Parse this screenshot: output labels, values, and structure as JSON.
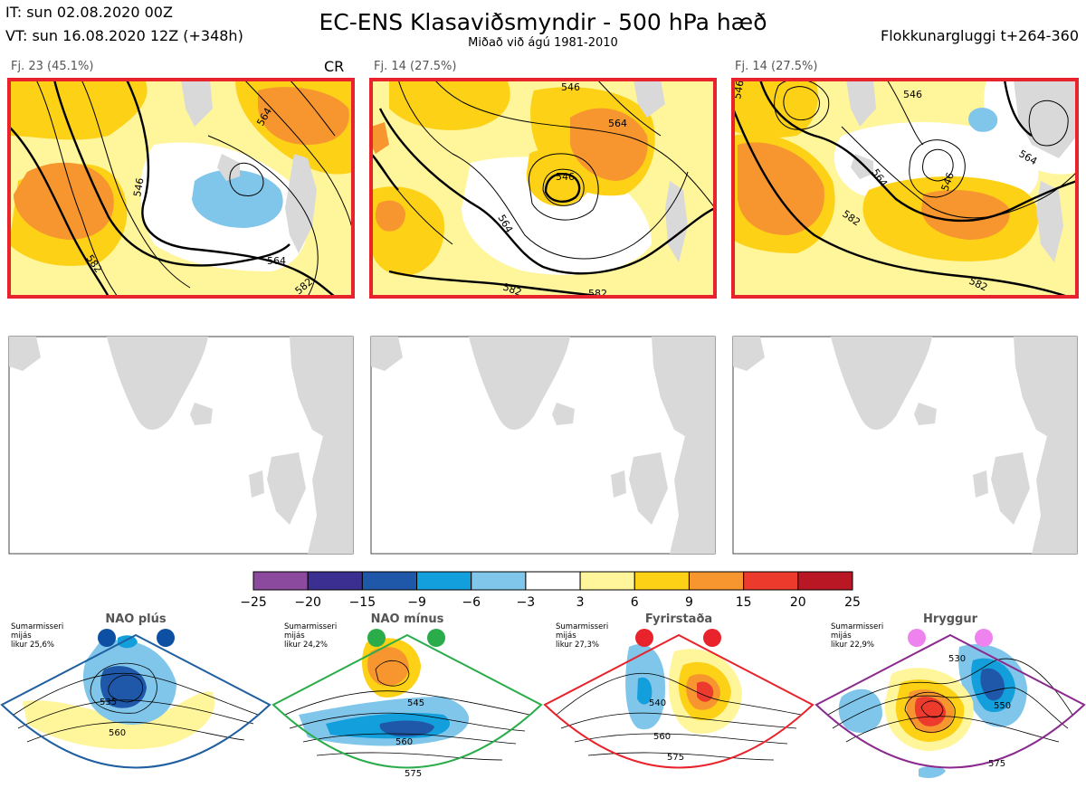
{
  "header": {
    "it": "IT: sun 02.08.2020 00Z",
    "vt": "VT: sun 16.08.2020 12Z  (+348h)",
    "title": "EC-ENS Klasaviðsmyndir - 500 hPa hæð",
    "subtitle": "Miðað við ágú 1981-2010",
    "window": "Flokkunargluggi t+264-360"
  },
  "panels": [
    {
      "label": "Fj. 23 (45.1%)",
      "cr": "CR",
      "contours": [
        "546",
        "564",
        "564",
        "582",
        "582"
      ]
    },
    {
      "label": "Fj. 14 (27.5%)",
      "contours": [
        "546",
        "546",
        "564",
        "564",
        "582",
        "582"
      ]
    },
    {
      "label": "Fj. 14 (27.5%)",
      "contours": [
        "546",
        "546",
        "546",
        "564",
        "564",
        "582",
        "582"
      ]
    }
  ],
  "colorbar": {
    "ticks": [
      "−25",
      "−20",
      "−15",
      "−9",
      "−6",
      "−3",
      "3",
      "6",
      "9",
      "15",
      "20",
      "25"
    ],
    "colors": [
      "#8c4a9e",
      "#3b2f91",
      "#1f58a8",
      "#139fdb",
      "#80c6eb",
      "#ffffff",
      "#fff59a",
      "#fcd116",
      "#f7962f",
      "#ec3a2d",
      "#b81723"
    ]
  },
  "regimes": [
    {
      "name": "NAO plús",
      "line1": "Sumarmisseri",
      "line2": "mijás",
      "line3": "likur 25,6%",
      "dot_color": "#0d4fa3",
      "border": "#1f5fa0",
      "contours": [
        "535",
        "560"
      ]
    },
    {
      "name": "NAO mínus",
      "line1": "Sumarmisseri",
      "line2": "mijás",
      "line3": "likur 24,2%",
      "dot_color": "#2aac4a",
      "border": "#2aac4a",
      "contours": [
        "545",
        "560",
        "575"
      ]
    },
    {
      "name": "Fyrirstaða",
      "line1": "Sumarmisseri",
      "line2": "mijás",
      "line3": "likur 27,3%",
      "dot_color": "#e8232b",
      "border": "#e8232b",
      "contours": [
        "540",
        "560",
        "575"
      ]
    },
    {
      "name": "Hryggur",
      "line1": "Sumarmisseri",
      "line2": "mijás",
      "line3": "likur 22,9%",
      "dot_color": "#ee82ee",
      "border": "#8a2a8e",
      "contours": [
        "530",
        "550",
        "575"
      ]
    }
  ]
}
